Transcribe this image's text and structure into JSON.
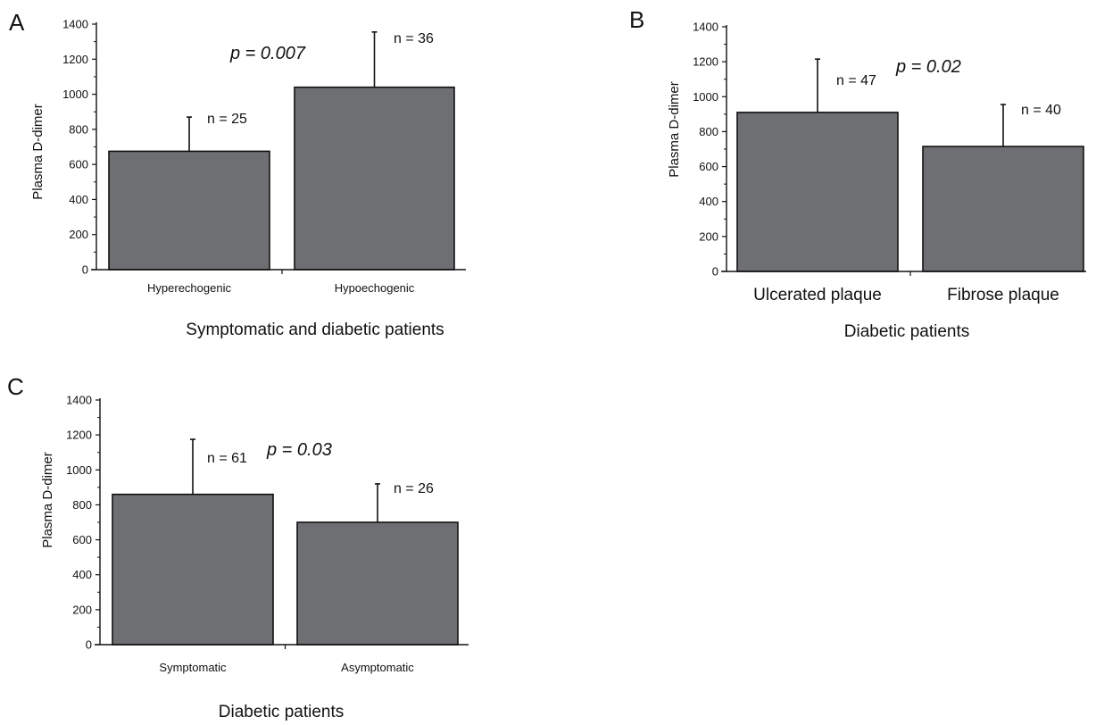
{
  "chart_data": [
    {
      "panel": "A",
      "type": "bar",
      "categories": [
        "Hyperechogenic",
        "Hypoechogenic"
      ],
      "values": [
        675,
        1040
      ],
      "errors": [
        195,
        315
      ],
      "n_labels": [
        "n = 25",
        "n = 36"
      ],
      "annotation": "p = 0.007",
      "xlabel": "Symptomatic and diabetic patients",
      "ylabel": "Plasma D-dimer",
      "ylim": [
        0,
        1400
      ],
      "yticks": [
        0,
        200,
        400,
        600,
        800,
        1000,
        1200,
        1400
      ],
      "bar_color": "#6e6f73"
    },
    {
      "panel": "B",
      "type": "bar",
      "categories": [
        "Ulcerated plaque",
        "Fibrose plaque"
      ],
      "values": [
        910,
        715
      ],
      "errors": [
        305,
        240
      ],
      "n_labels": [
        "n = 47",
        "n = 40"
      ],
      "annotation": "p = 0.02",
      "xlabel": "Diabetic patients",
      "ylabel": "Plasma D-dimer",
      "ylim": [
        0,
        1400
      ],
      "yticks": [
        0,
        200,
        400,
        600,
        800,
        1000,
        1200,
        1400
      ],
      "bar_color": "#6e6f73"
    },
    {
      "panel": "C",
      "type": "bar",
      "categories": [
        "Symptomatic",
        "Asymptomatic"
      ],
      "values": [
        860,
        700
      ],
      "errors": [
        315,
        220
      ],
      "n_labels": [
        "n = 61",
        "n = 26"
      ],
      "annotation": "p = 0.03",
      "xlabel": "Diabetic patients",
      "ylabel": "Plasma D-dimer",
      "ylim": [
        0,
        1400
      ],
      "yticks": [
        0,
        200,
        400,
        600,
        800,
        1000,
        1200,
        1400
      ],
      "bar_color": "#6e6f73"
    }
  ]
}
